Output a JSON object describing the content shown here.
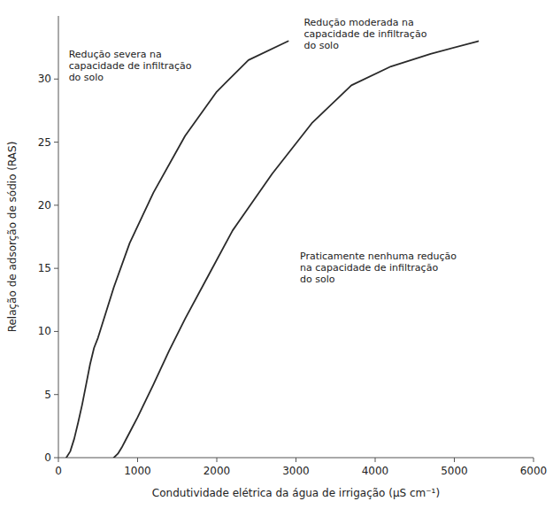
{
  "chart_data": {
    "type": "line",
    "xlabel": "Condutividade elétrica da água de irrigação (μS cm⁻¹)",
    "ylabel": "Relação de adsorção de sódio (RAS)",
    "xlim": [
      0,
      6000
    ],
    "ylim": [
      0,
      35
    ],
    "xticks": [
      0,
      1000,
      2000,
      3000,
      4000,
      5000,
      6000
    ],
    "yticks": [
      0,
      5,
      10,
      15,
      20,
      25,
      30
    ],
    "series": [
      {
        "color": "#2a2a2a",
        "x": [
          100,
          150,
          200,
          250,
          300,
          350,
          400,
          450,
          500,
          600,
          700,
          900,
          1200,
          1600,
          2000,
          2400,
          2900
        ],
        "values": [
          0.0,
          0.5,
          1.5,
          2.8,
          4.2,
          5.8,
          7.4,
          8.7,
          9.5,
          11.5,
          13.5,
          17.0,
          21.0,
          25.5,
          29.0,
          31.5,
          33.0
        ]
      },
      {
        "color": "#2a2a2a",
        "x": [
          700,
          750,
          800,
          850,
          900,
          1000,
          1100,
          1200,
          1400,
          1600,
          1900,
          2200,
          2700,
          3200,
          3700,
          4200,
          4700,
          5300
        ],
        "values": [
          0.0,
          0.3,
          0.8,
          1.4,
          2.0,
          3.2,
          4.5,
          5.8,
          8.5,
          11.0,
          14.5,
          18.0,
          22.5,
          26.5,
          29.5,
          31.0,
          32.0,
          33.0
        ]
      }
    ],
    "annotations": [
      {
        "text": "Redução severa na\ncapacidade de infiltração\ndo solo",
        "x": 130,
        "y": 32.5
      },
      {
        "text": "Redução moderada na\ncapacidade de infiltração\ndo solo",
        "x": 3100,
        "y": 35
      },
      {
        "text": "Praticamente nenhuma redução\nna capacidade de infiltração\ndo solo",
        "x": 3050,
        "y": 16.5
      }
    ]
  }
}
